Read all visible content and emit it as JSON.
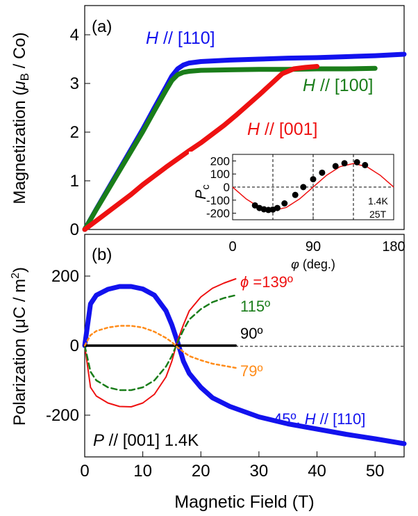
{
  "figure": {
    "xlabel": "Magnetic Field (T)",
    "x_ticks": [
      "0",
      "10",
      "20",
      "30",
      "40",
      "50"
    ]
  },
  "colors": {
    "blue": "#1212ee",
    "green": "#1a7d1a",
    "red": "#ee1111",
    "orange": "#ff8c1a",
    "black": "#000000"
  },
  "chart_data": [
    {
      "panel_label": "(a)",
      "type": "scatter",
      "title": "",
      "xlabel": "Magnetic Field (T)",
      "ylabel_main": "Magnetization (",
      "ylabel_mu": "μ",
      "ylabel_sub": "B",
      "ylabel_tail": " / Co)",
      "xlim": [
        0,
        55
      ],
      "ylim": [
        0,
        4.6
      ],
      "y_ticks": [
        "0",
        "1",
        "2",
        "3",
        "4"
      ],
      "series": [
        {
          "name": "H // [110]",
          "label_italic": "H",
          "label_rest": " // [110]",
          "color": "blue",
          "x": [
            0,
            2,
            4,
            6,
            8,
            10,
            12,
            14,
            15,
            16,
            17,
            18,
            20,
            25,
            30,
            35,
            40,
            45,
            50,
            55
          ],
          "y": [
            0,
            0.42,
            0.83,
            1.24,
            1.65,
            2.06,
            2.5,
            2.93,
            3.15,
            3.3,
            3.38,
            3.42,
            3.45,
            3.48,
            3.5,
            3.52,
            3.53,
            3.55,
            3.57,
            3.6
          ]
        },
        {
          "name": "H // [100]",
          "label_italic": "H",
          "label_rest": " // [100]",
          "color": "green",
          "x": [
            0,
            2,
            4,
            6,
            8,
            10,
            12,
            14,
            15,
            16,
            17,
            18,
            20,
            25,
            30,
            35,
            40,
            45,
            50
          ],
          "y": [
            0,
            0.41,
            0.81,
            1.21,
            1.61,
            2.01,
            2.44,
            2.86,
            3.06,
            3.18,
            3.23,
            3.25,
            3.27,
            3.28,
            3.29,
            3.29,
            3.3,
            3.3,
            3.31
          ]
        },
        {
          "name": "H // [001]",
          "label_italic": "H",
          "label_rest": " // [001]",
          "color": "red",
          "x": [
            0,
            2,
            4,
            6,
            8,
            10,
            12,
            14,
            16,
            18,
            20,
            22,
            24,
            26,
            28,
            30,
            32,
            34,
            36,
            38,
            40
          ],
          "y": [
            0,
            0.18,
            0.36,
            0.54,
            0.72,
            0.92,
            1.1,
            1.28,
            1.45,
            1.62,
            1.78,
            1.96,
            2.14,
            2.34,
            2.55,
            2.76,
            2.98,
            3.2,
            3.3,
            3.33,
            3.35
          ]
        }
      ]
    },
    {
      "panel_label": "inset",
      "type": "scatter",
      "ylabel_italic": "P",
      "ylabel_sub": "c",
      "xlabel_italic": "φ",
      "xlabel_rest": " (deg.)",
      "xlim": [
        0,
        180
      ],
      "ylim": [
        -250,
        250
      ],
      "x_ticks": [
        "0",
        "90",
        "180"
      ],
      "y_ticks": [
        "200",
        "100",
        "0",
        "-100",
        "-200"
      ],
      "annotations": [
        "1.4K",
        "25T"
      ],
      "points": {
        "x": [
          25,
          30,
          35,
          40,
          45,
          50,
          58,
          70,
          79,
          90,
          100,
          115,
          125,
          139,
          148
        ],
        "y": [
          -140,
          -160,
          -170,
          -175,
          -172,
          -160,
          -125,
          -60,
          0,
          60,
          110,
          160,
          182,
          190,
          168
        ]
      },
      "fit_curve": {
        "x": [
          0,
          15,
          30,
          45,
          60,
          75,
          90,
          105,
          120,
          135,
          150,
          165,
          180
        ],
        "y": [
          0,
          -90,
          -156,
          -180,
          -156,
          -90,
          0,
          90,
          156,
          180,
          156,
          90,
          0
        ]
      }
    },
    {
      "panel_label": "(b)",
      "type": "line",
      "title": "",
      "xlabel": "Magnetic Field (T)",
      "ylabel_main": "Polarization (μC / m",
      "ylabel_sup": "2",
      "ylabel_tail": ")",
      "xlim": [
        0,
        55
      ],
      "ylim": [
        -320,
        320
      ],
      "y_ticks": [
        "200",
        "0",
        "-200"
      ],
      "annotation_italic": "P",
      "annotation_rest": " // [001] 1.4K",
      "series": [
        {
          "name": "45º, H // [110]",
          "label_plain": "45º, ",
          "label_italic": "H",
          "label_rest": " // [110]",
          "color": "blue",
          "x": [
            0,
            1,
            2,
            4,
            6,
            8,
            10,
            12,
            14,
            15,
            16,
            17,
            18,
            20,
            22,
            25,
            30,
            35,
            40,
            45,
            50,
            55
          ],
          "y": [
            0,
            120,
            145,
            162,
            170,
            170,
            163,
            145,
            100,
            60,
            10,
            -45,
            -80,
            -120,
            -150,
            -175,
            -205,
            -225,
            -240,
            -255,
            -268,
            -282
          ]
        },
        {
          "name": "ϕ =139º",
          "label_italic": "ϕ",
          "label_rest": " =139º",
          "color": "red",
          "x": [
            0,
            1,
            2,
            4,
            6,
            8,
            10,
            12,
            14,
            15,
            16,
            17,
            18,
            20,
            22,
            24,
            26
          ],
          "y": [
            0,
            -120,
            -145,
            -165,
            -175,
            -176,
            -165,
            -140,
            -90,
            -45,
            15,
            60,
            100,
            140,
            165,
            180,
            192
          ]
        },
        {
          "name": "115º",
          "label_rest": "115º",
          "color": "green",
          "x": [
            0,
            1,
            2,
            4,
            6,
            8,
            10,
            12,
            14,
            15,
            16,
            17,
            18,
            20,
            22,
            24,
            26
          ],
          "y": [
            0,
            -75,
            -100,
            -120,
            -128,
            -128,
            -120,
            -100,
            -60,
            -30,
            10,
            45,
            75,
            105,
            125,
            137,
            145
          ]
        },
        {
          "name": "90º",
          "label_rest": "90º",
          "color": "black",
          "x": [
            0,
            5,
            10,
            15,
            20,
            26
          ],
          "y": [
            0,
            0,
            0,
            0,
            0,
            0
          ]
        },
        {
          "name": "79º",
          "label_rest": "79º",
          "color": "orange",
          "x": [
            0,
            1,
            2,
            4,
            6,
            8,
            10,
            12,
            14,
            15,
            16,
            17,
            18,
            20,
            22,
            24,
            26
          ],
          "y": [
            0,
            30,
            42,
            52,
            57,
            57,
            52,
            40,
            22,
            10,
            -5,
            -18,
            -30,
            -42,
            -52,
            -58,
            -64
          ]
        }
      ]
    }
  ]
}
